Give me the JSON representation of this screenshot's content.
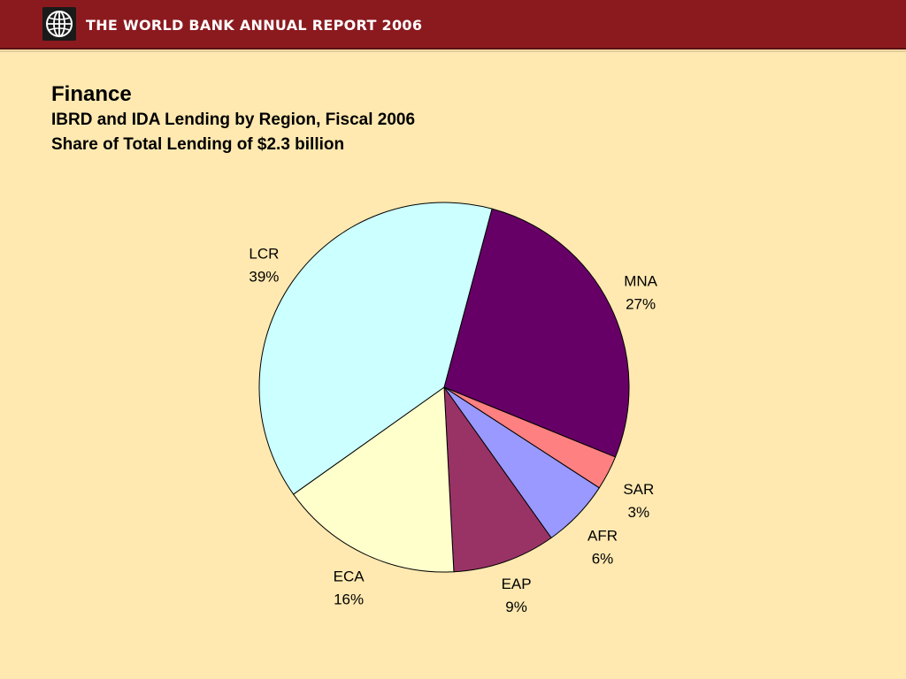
{
  "header": {
    "title": "THE WORLD BANK ANNUAL REPORT 2006",
    "logo_icon": "globe-icon",
    "background_color": "#8b1a1f"
  },
  "page": {
    "heading": "Finance",
    "subtitle_line1": "IBRD and IDA Lending by Region, Fiscal 2006",
    "subtitle_line2": "Share of Total Lending of $2.3 billion",
    "background_color": "#ffe9b0"
  },
  "chart_data": {
    "type": "pie",
    "start_angle_deg": 15,
    "direction": "clockwise",
    "slices": [
      {
        "label": "MNA",
        "value": 27,
        "value_label": "27%",
        "color": "#660066"
      },
      {
        "label": "SAR",
        "value": 3,
        "value_label": "3%",
        "color": "#ff8080"
      },
      {
        "label": "AFR",
        "value": 6,
        "value_label": "6%",
        "color": "#9999ff"
      },
      {
        "label": "EAP",
        "value": 9,
        "value_label": "9%",
        "color": "#993366"
      },
      {
        "label": "ECA",
        "value": 16,
        "value_label": "16%",
        "color": "#ffffcc"
      },
      {
        "label": "LCR",
        "value": 39,
        "value_label": "39%",
        "color": "#ccffff"
      }
    ]
  }
}
